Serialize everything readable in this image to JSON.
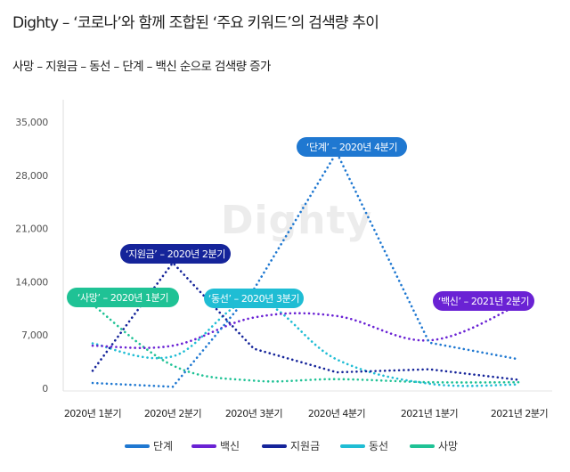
{
  "header": {
    "title": "Dighty  – ‘코로나’와 함께 조합된 ‘주요 키워드’의 검색량 추이",
    "subtitle": "사망 – 지원금 – 동선 – 단계 – 백신 순으로 검색량 증가"
  },
  "watermark": "Dighty",
  "chart_data": {
    "type": "line",
    "title": "Dighty – ‘코로나’와 함께 조합된 ‘주요 키워드’의 검색량 추이",
    "subtitle": "사망 – 지원금 – 동선 – 단계 – 백신 순으로 검색량 증가",
    "xlabel": "",
    "ylabel": "",
    "categories": [
      "2020년 1분기",
      "2020년 2분기",
      "2020년 3분기",
      "2020년 4분기",
      "2021년 1분기",
      "2021년 2분기"
    ],
    "yticks": [
      0,
      7000,
      14000,
      21000,
      28000,
      35000
    ],
    "ytick_labels": [
      "0",
      "7,000",
      "14,000",
      "21,000",
      "28,000",
      "35,000"
    ],
    "ylim": [
      0,
      35000
    ],
    "grid": false,
    "legend_position": "bottom",
    "series": [
      {
        "name": "단계",
        "color": "#1f78d1",
        "values": [
          700,
          200,
          13000,
          31000,
          6000,
          3800
        ]
      },
      {
        "name": "백신",
        "color": "#6a22d4",
        "values": [
          5600,
          5600,
          9300,
          9500,
          6300,
          11000
        ]
      },
      {
        "name": "지원금",
        "color": "#15249a",
        "values": [
          2300,
          16500,
          5200,
          2100,
          2500,
          1100
        ]
      },
      {
        "name": "동선",
        "color": "#1fbdd4",
        "values": [
          5900,
          4200,
          11500,
          3800,
          600,
          500
        ]
      },
      {
        "name": "사망",
        "color": "#1fc295",
        "values": [
          11000,
          3000,
          1000,
          1200,
          800,
          800
        ]
      }
    ],
    "annotations": [
      {
        "text": "‘사망’ – 2020년 1분기",
        "series": "사망",
        "category": "2020년 1분기",
        "color": "#1fc295"
      },
      {
        "text": "‘지원금’ – 2020년 2분기",
        "series": "지원금",
        "category": "2020년 2분기",
        "color": "#15249a"
      },
      {
        "text": "‘동선’ – 2020년 3분기",
        "series": "동선",
        "category": "2020년 3분기",
        "color": "#1fbdd4"
      },
      {
        "text": "‘단계’ – 2020년 4분기",
        "series": "단계",
        "category": "2020년 4분기",
        "color": "#1f78d1"
      },
      {
        "text": "‘백신’ – 2021년 2분기",
        "series": "백신",
        "category": "2021년 2분기",
        "color": "#6a22d4"
      }
    ]
  }
}
